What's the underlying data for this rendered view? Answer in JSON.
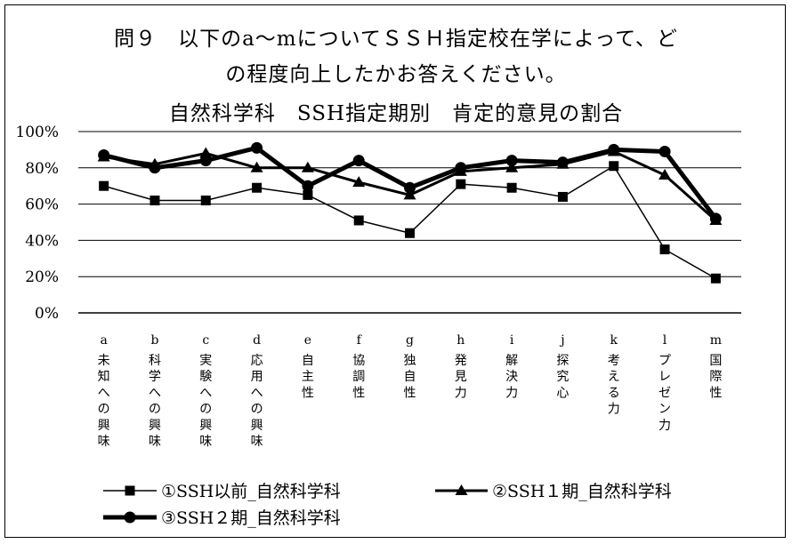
{
  "chart_data": {
    "type": "line",
    "title_lines": [
      "問９　以下のa～mについてＳＳＨ指定校在学によって、ど",
      "の程度向上したかお答えください。",
      "自然科学科　SSH指定期別　肯定的意見の割合"
    ],
    "yticks": [
      "100%",
      "80%",
      "60%",
      "40%",
      "20%",
      "0%"
    ],
    "ylim": [
      0,
      100
    ],
    "categories": [
      {
        "letter": "a",
        "label": "未知への興味"
      },
      {
        "letter": "b",
        "label": "科学への興味"
      },
      {
        "letter": "c",
        "label": "実験への興味"
      },
      {
        "letter": "d",
        "label": "応用への興味"
      },
      {
        "letter": "e",
        "label": "自主性"
      },
      {
        "letter": "f",
        "label": "協調性"
      },
      {
        "letter": "g",
        "label": "独自性"
      },
      {
        "letter": "h",
        "label": "発見力"
      },
      {
        "letter": "i",
        "label": "解決力"
      },
      {
        "letter": "j",
        "label": "探究心"
      },
      {
        "letter": "k",
        "label": "考える力"
      },
      {
        "letter": "l",
        "label": "プレゼン力"
      },
      {
        "letter": "m",
        "label": "国際性"
      }
    ],
    "series": [
      {
        "name": "①SSH以前_自然科学科",
        "marker": "square",
        "values": [
          70,
          62,
          62,
          69,
          65,
          51,
          44,
          71,
          69,
          64,
          81,
          35,
          19
        ]
      },
      {
        "name": "②SSH１期_自然科学科",
        "marker": "triangle",
        "values": [
          86,
          82,
          88,
          80,
          80,
          72,
          65,
          78,
          80,
          82,
          89,
          76,
          51
        ]
      },
      {
        "name": "③SSH２期_自然科学科",
        "marker": "circle",
        "values": [
          87,
          80,
          84,
          91,
          70,
          84,
          69,
          80,
          84,
          83,
          90,
          89,
          52
        ]
      }
    ],
    "legend": "bottom",
    "grid": true
  }
}
